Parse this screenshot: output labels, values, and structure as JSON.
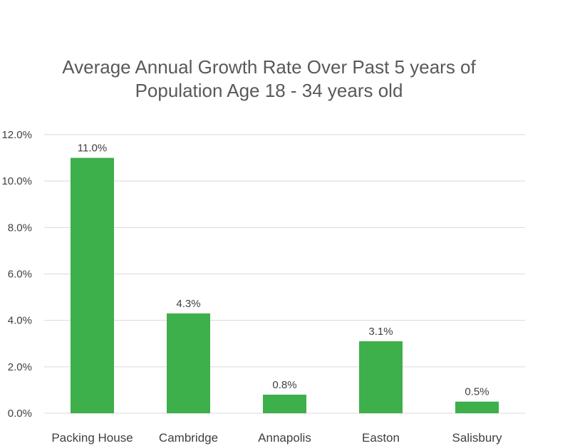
{
  "chart_data": {
    "type": "bar",
    "title": [
      "Average Annual Growth Rate Over Past 5 years of",
      "Population Age 18 - 34 years old"
    ],
    "categories": [
      "Packing House",
      "Cambridge",
      "Annapolis",
      "Easton",
      "Salisbury"
    ],
    "values": [
      11.0,
      4.3,
      0.8,
      3.1,
      0.5
    ],
    "data_labels": [
      "11.0%",
      "4.3%",
      "0.8%",
      "3.1%",
      "0.5%"
    ],
    "y_ticks": [
      0,
      2,
      4,
      6,
      8,
      10,
      12
    ],
    "y_tick_labels": [
      "0.0%",
      "2.0%",
      "4.0%",
      "6.0%",
      "8.0%",
      "10.0%",
      "12.0%"
    ],
    "ylim": [
      0,
      12
    ],
    "grid": true,
    "legend": false,
    "bar_color": "#3DAF4B",
    "grid_color": "#D9D9D9"
  }
}
